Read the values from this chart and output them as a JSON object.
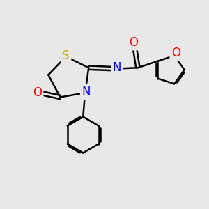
{
  "background_color": "#e8e8e8",
  "atom_colors": {
    "S": "#ccaa00",
    "N": "#0000ff",
    "O": "#ff0000",
    "C": "#000000"
  },
  "bond_color": "#000000",
  "bond_width": 1.8,
  "font_size_atoms": 12
}
